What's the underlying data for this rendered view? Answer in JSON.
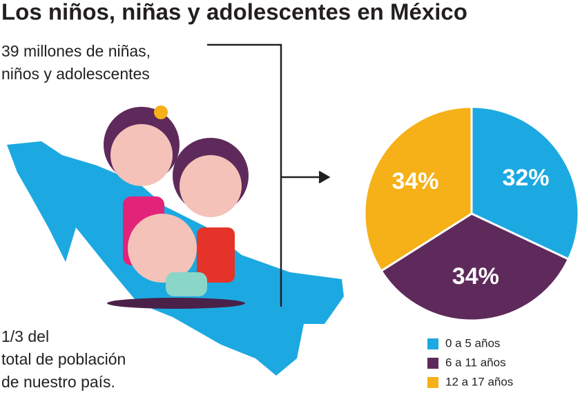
{
  "chart_data": {
    "type": "pie",
    "title": "Los niños, niñas y adolescentes en México",
    "categories": [
      "0 a 5 años",
      "6 a 11 años",
      "12 a 17 años"
    ],
    "values": [
      32,
      34,
      34
    ],
    "value_labels": [
      "32%",
      "34%",
      "34%"
    ],
    "colors": [
      "#1ca9e1",
      "#5e2a5b",
      "#f5b117"
    ],
    "annotations": [
      [
        "39 millones de niñas,",
        "niños y adolescentes"
      ],
      [
        "1/3 del",
        "total de población",
        "de nuestro país."
      ]
    ]
  }
}
